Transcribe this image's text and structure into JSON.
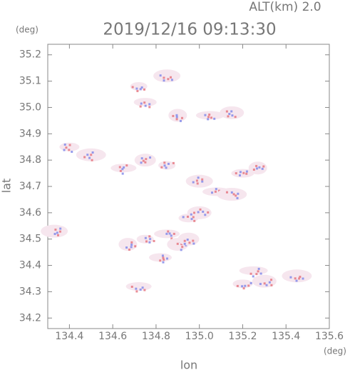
{
  "chart_data": {
    "type": "scatter",
    "title": "2019/12/16 09:13:30",
    "subtitle": "ALT(km) 2.0",
    "x_label": "lon",
    "y_label": "lat",
    "x_unit": "(deg)",
    "y_unit": "(deg)",
    "x": [
      134.72,
      134.85,
      134.75,
      134.9,
      135.05,
      135.15,
      134.4,
      134.5,
      134.65,
      134.75,
      134.85,
      135.0,
      135.2,
      135.27,
      135.08,
      135.0,
      134.95,
      135.15,
      134.85,
      134.9,
      134.75,
      134.33,
      134.82,
      134.67,
      135.25,
      135.3,
      135.2,
      135.45,
      134.72,
      134.95
    ],
    "values": [
      35.08,
      35.12,
      35.02,
      34.97,
      34.97,
      34.98,
      34.85,
      34.82,
      34.77,
      34.8,
      34.78,
      34.72,
      34.75,
      34.77,
      34.68,
      34.6,
      34.58,
      34.67,
      34.52,
      34.48,
      34.5,
      34.53,
      34.43,
      34.48,
      34.38,
      34.34,
      34.33,
      34.36,
      34.32,
      34.5
    ],
    "xlim": [
      134.3,
      135.6
    ],
    "ylim": [
      34.16,
      35.24
    ],
    "xticks": [
      134.4,
      134.6,
      134.8,
      {
        "value": 135.0,
        "label": "135.0"
      },
      135.2,
      135.4,
      135.6
    ],
    "yticks": [
      34.2,
      34.3,
      34.4,
      34.5,
      34.6,
      34.7,
      34.8,
      34.9,
      {
        "value": 35.0,
        "label": "35.0"
      },
      35.1,
      35.2
    ]
  }
}
